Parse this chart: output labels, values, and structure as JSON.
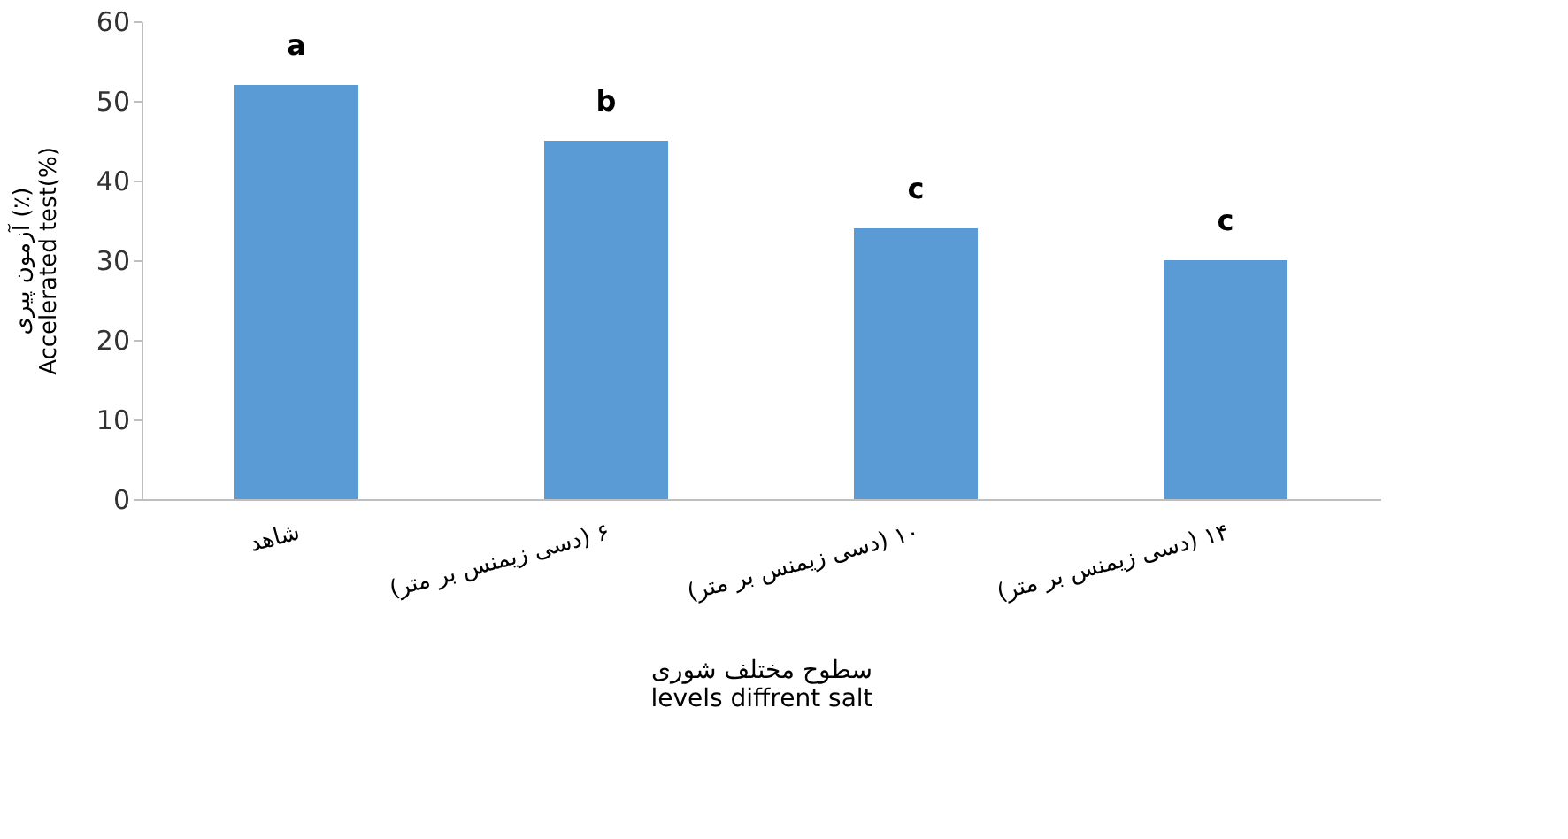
{
  "chart_data": {
    "type": "bar",
    "categories": [
      "شاهد",
      "۶ (دسی زیمنس بر متر)",
      "۱۰ (دسی زیمنس بر متر)",
      "۱۴ (دسی زیمنس بر متر)"
    ],
    "values": [
      52,
      45,
      34,
      30
    ],
    "color": "#5b9bd5",
    "xlabel": "سطوح مختلف شوری\nlevels diffrent salt",
    "ylabel": "آزمون پیری (٪)\nAccelerated test(%)",
    "ylim": [
      0,
      60
    ],
    "yticks": [
      0,
      10,
      20,
      30,
      40,
      50,
      60
    ],
    "grid": false,
    "annotations": [
      {
        "text": "a",
        "x": "شاهد",
        "y": 52
      },
      {
        "text": "b",
        "x": "۶ (دسی زیمنس بر متر)",
        "y": 45
      },
      {
        "text": "c",
        "x": "۱۰ (دسی زیمنس بر متر)",
        "y": 34
      },
      {
        "text": "c",
        "x": "۱۴ (دسی زیمنس بر متر)",
        "y": 30
      }
    ]
  }
}
